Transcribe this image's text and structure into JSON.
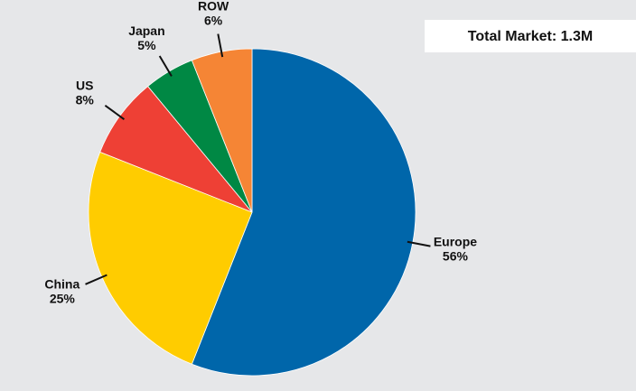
{
  "chart_data": {
    "type": "pie",
    "annotation": "Total Market: 1.3M",
    "categories": [
      "Europe",
      "China",
      "US",
      "Japan",
      "ROW"
    ],
    "values": [
      56,
      25,
      8,
      5,
      6
    ],
    "value_labels": [
      "56%",
      "25%",
      "8%",
      "5%",
      "6%"
    ],
    "colors": [
      "#0066aa",
      "#ffcc00",
      "#ee4035",
      "#008844",
      "#f58535"
    ]
  }
}
